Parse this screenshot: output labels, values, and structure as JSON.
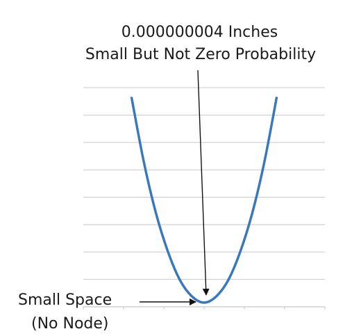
{
  "annotations": {
    "top_line_1": "0.000000004 Inches",
    "top_line_2": "Small But Not Zero Probability",
    "min_line_1": "Small Space",
    "min_line_2": "(No Node)"
  },
  "colors": {
    "curve": "#3a78bd",
    "grid": "#c8c8c8",
    "arrow": "#111111"
  },
  "chart_data": {
    "type": "line",
    "title": "",
    "xlabel": "",
    "ylabel": "",
    "grid": true,
    "xlim": [
      -1,
      1
    ],
    "ylim": [
      0,
      1.05
    ],
    "series": [
      {
        "x": [
          -0.6,
          -0.5,
          -0.4,
          -0.3,
          -0.2,
          -0.1,
          0,
          0.1,
          0.2,
          0.3,
          0.4,
          0.5,
          0.6
        ],
        "y": [
          1.0,
          0.69,
          0.44,
          0.25,
          0.11,
          0.03,
          0.0,
          0.03,
          0.11,
          0.25,
          0.44,
          0.69,
          1.0
        ]
      }
    ]
  }
}
